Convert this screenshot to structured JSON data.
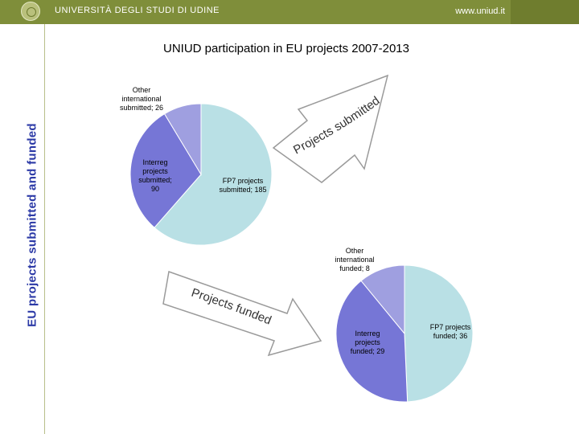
{
  "header": {
    "university": "UNIVERSITÀ DEGLI STUDI DI UDINE",
    "website": "www.uniud.it",
    "bar_color": "#7f8e3a"
  },
  "side_label": "EU projects submitted and funded",
  "chart_data": [
    {
      "type": "pie",
      "title": "UNIUD participation in EU projects 2007-2013",
      "annotation": "Projects submitted",
      "slices": [
        {
          "label": "FP7 projects submitted; 185",
          "category": "FP7 projects submitted",
          "value": 185,
          "color": "#b9e0e5"
        },
        {
          "label": "Interreg projects submitted; 90",
          "category": "Interreg projects submitted",
          "value": 90,
          "color": "#7676d6"
        },
        {
          "label": "Other international submitted; 26",
          "category": "Other international submitted",
          "value": 26,
          "color": "#9f9fe0"
        }
      ]
    },
    {
      "type": "pie",
      "annotation": "Projects funded",
      "slices": [
        {
          "label": "FP7 projects funded; 36",
          "category": "FP7 projects funded",
          "value": 36,
          "color": "#b9e0e5"
        },
        {
          "label": "Interreg projects funded; 29",
          "category": "Interreg projects funded",
          "value": 29,
          "color": "#7676d6"
        },
        {
          "label": "Other international funded; 8",
          "category": "Other international funded",
          "value": 8,
          "color": "#9f9fe0"
        }
      ]
    }
  ]
}
